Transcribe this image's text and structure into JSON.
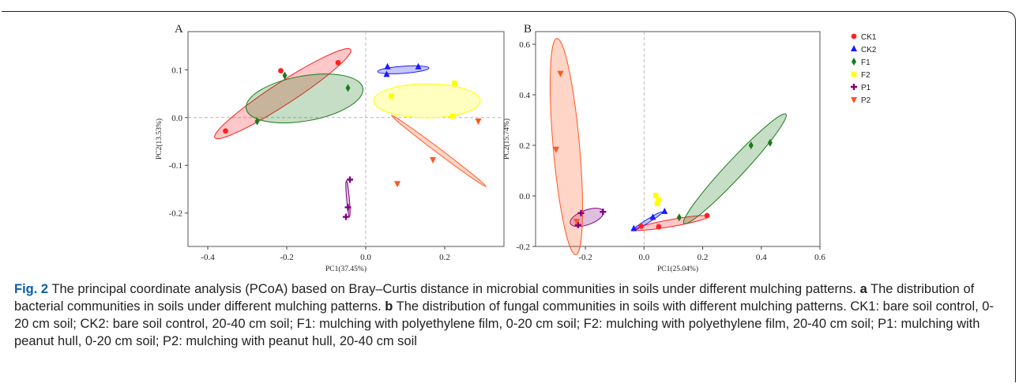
{
  "panel_a_letter": "A",
  "panel_b_letter": "B",
  "legend": [
    {
      "name": "CK1",
      "color": "#ff2020",
      "shape": "circle"
    },
    {
      "name": "CK2",
      "color": "#1a1aff",
      "shape": "triangle-up"
    },
    {
      "name": "F1",
      "color": "#1a7a1a",
      "shape": "diamond"
    },
    {
      "name": "F2",
      "color": "#ffff00",
      "shape": "square"
    },
    {
      "name": "P1",
      "color": "#800080",
      "shape": "plus"
    },
    {
      "name": "P2",
      "color": "#ff5722",
      "shape": "triangle-down"
    }
  ],
  "chart_data": [
    {
      "type": "scatter",
      "panel": "A",
      "xlabel": "PC1(37.45%)",
      "ylabel": "PC2(13.53%)",
      "xlim": [
        -0.45,
        0.35
      ],
      "ylim": [
        -0.27,
        0.18
      ],
      "xticks": [
        -0.4,
        -0.2,
        0.0,
        0.2
      ],
      "yticks": [
        0.1,
        0.0,
        -0.1,
        -0.2
      ],
      "tick_labels_x": [
        "-0.4",
        "-0.2",
        "0.0",
        "0.2"
      ],
      "tick_labels_y": [
        "0.1",
        "0.0",
        "-0.1",
        "-0.2"
      ],
      "series": [
        {
          "name": "CK1",
          "points": [
            [
              -0.355,
              -0.028
            ],
            [
              -0.215,
              0.098
            ],
            [
              -0.07,
              0.115
            ]
          ]
        },
        {
          "name": "CK2",
          "points": [
            [
              0.055,
              0.106
            ],
            [
              0.053,
              0.09
            ],
            [
              0.133,
              0.106
            ]
          ]
        },
        {
          "name": "F1",
          "points": [
            [
              -0.275,
              -0.008
            ],
            [
              -0.205,
              0.088
            ],
            [
              -0.045,
              0.062
            ]
          ]
        },
        {
          "name": "F2",
          "points": [
            [
              0.065,
              0.045
            ],
            [
              0.225,
              0.072
            ],
            [
              0.22,
              0.003
            ]
          ]
        },
        {
          "name": "P1",
          "points": [
            [
              -0.04,
              -0.13
            ],
            [
              -0.045,
              -0.188
            ],
            [
              -0.05,
              -0.208
            ]
          ]
        },
        {
          "name": "P2",
          "points": [
            [
              0.08,
              -0.138
            ],
            [
              0.17,
              -0.088
            ],
            [
              0.285,
              -0.007
            ]
          ]
        }
      ],
      "ellipses": [
        {
          "name": "CK1",
          "cx": -0.21,
          "cy": 0.05,
          "rx": 0.205,
          "ry": 0.028,
          "angle": 33
        },
        {
          "name": "CK2",
          "cx": 0.095,
          "cy": 0.1,
          "rx": 0.065,
          "ry": 0.009,
          "angle": 4
        },
        {
          "name": "F1",
          "cx": -0.155,
          "cy": 0.04,
          "rx": 0.15,
          "ry": 0.057,
          "angle": 10
        },
        {
          "name": "F2",
          "cx": 0.155,
          "cy": 0.035,
          "rx": 0.135,
          "ry": 0.043,
          "angle": 0
        },
        {
          "name": "P1",
          "cx": -0.045,
          "cy": -0.17,
          "rx": 0.046,
          "ry": 0.0035,
          "angle": -85
        },
        {
          "name": "P2",
          "cx": 0.185,
          "cy": -0.07,
          "rx": 0.15,
          "ry": 0.006,
          "angle": -37
        }
      ]
    },
    {
      "type": "scatter",
      "panel": "B",
      "xlabel": "PC1(25.04%)",
      "ylabel": "PC2(15.74%)",
      "xlim": [
        -0.37,
        0.6
      ],
      "ylim": [
        -0.2,
        0.65
      ],
      "xticks": [
        -0.2,
        0.0,
        0.2,
        0.4,
        0.6
      ],
      "yticks": [
        0.6,
        0.4,
        0.2,
        0.0,
        -0.2
      ],
      "tick_labels_x": [
        "-0.2",
        "0.0",
        "0.2",
        "0.4",
        "0.6"
      ],
      "tick_labels_y": [
        "0.6",
        "0.4",
        "0.2",
        "0.0",
        "-0.2"
      ],
      "series": [
        {
          "name": "CK1",
          "points": [
            [
              -0.01,
              -0.12
            ],
            [
              0.05,
              -0.122
            ],
            [
              0.215,
              -0.078
            ]
          ]
        },
        {
          "name": "CK2",
          "points": [
            [
              -0.035,
              -0.13
            ],
            [
              0.03,
              -0.085
            ],
            [
              0.07,
              -0.062
            ]
          ]
        },
        {
          "name": "F1",
          "points": [
            [
              0.12,
              -0.085
            ],
            [
              0.365,
              0.2
            ],
            [
              0.43,
              0.21
            ]
          ]
        },
        {
          "name": "F2",
          "points": [
            [
              0.04,
              0.002
            ],
            [
              0.05,
              -0.015
            ],
            [
              0.045,
              -0.03
            ]
          ]
        },
        {
          "name": "P1",
          "points": [
            [
              -0.225,
              -0.115
            ],
            [
              -0.215,
              -0.068
            ],
            [
              -0.14,
              -0.063
            ]
          ]
        },
        {
          "name": "P2",
          "points": [
            [
              -0.3,
              0.185
            ],
            [
              -0.285,
              0.485
            ],
            [
              -0.23,
              -0.1
            ]
          ]
        }
      ],
      "ellipses": [
        {
          "name": "CK1",
          "cx": 0.095,
          "cy": -0.107,
          "rx": 0.128,
          "ry": 0.012,
          "angle": 10
        },
        {
          "name": "CK2",
          "cx": 0.012,
          "cy": -0.1,
          "rx": 0.06,
          "ry": 0.006,
          "angle": 32
        },
        {
          "name": "F1",
          "cx": 0.31,
          "cy": 0.107,
          "rx": 0.255,
          "ry": 0.03,
          "angle": 47
        },
        {
          "name": "F2",
          "cx": 0.045,
          "cy": -0.014,
          "rx": 0.022,
          "ry": 0.003,
          "angle": -80
        },
        {
          "name": "P1",
          "cx": -0.195,
          "cy": -0.085,
          "rx": 0.06,
          "ry": 0.025,
          "angle": 20
        },
        {
          "name": "P2",
          "cx": -0.265,
          "cy": 0.195,
          "rx": 0.37,
          "ry": 0.045,
          "angle": -85
        }
      ]
    }
  ],
  "caption": {
    "figure_label": "Fig. 2",
    "title": " The principal coordinate analysis (PCoA) based on Bray–Curtis distance in microbial communities in soils under different mulching patterns. ",
    "part_a_label": "a",
    "part_a_text": " The distribution of bacterial communities in soils under different mulching patterns. ",
    "part_b_label": "b",
    "part_b_text": " The distribution of fungal communities in soils with different mulching patterns. CK1: bare soil control, 0-20 cm soil; CK2: bare soil control, 20-40 cm soil; F1: mulching with polyethylene film, 0-20 cm soil; F2: mulching with polyethylene film, 20-40 cm soil; P1: mulching with peanut hull, 0-20 cm soil; P2: mulching with peanut hull, 20-40 cm soil"
  }
}
